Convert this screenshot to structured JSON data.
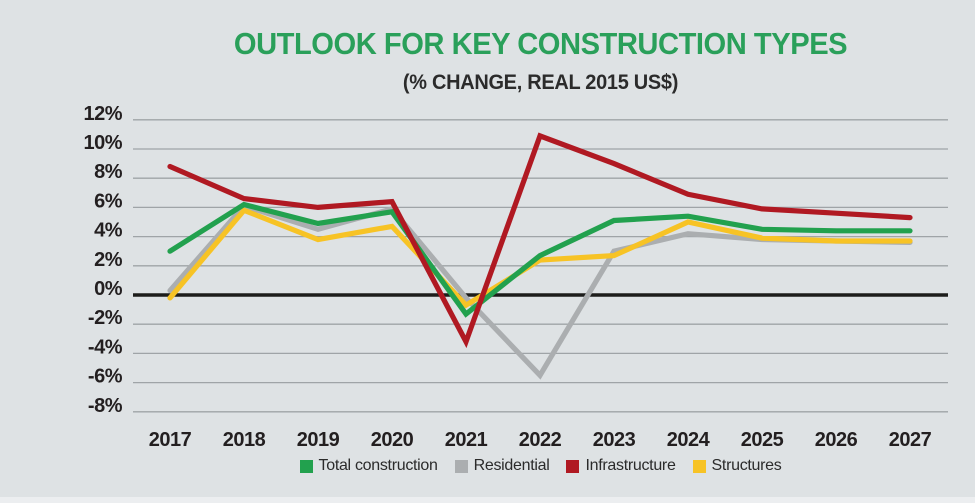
{
  "header": {
    "title": "OUTLOOK FOR KEY CONSTRUCTION TYPES",
    "subtitle": "(% CHANGE, REAL 2015 US$)",
    "title_color": "#2aa05a"
  },
  "chart_data": {
    "type": "line",
    "title": "OUTLOOK FOR KEY CONSTRUCTION TYPES",
    "subtitle": "(% CHANGE, REAL 2015 US$)",
    "categories": [
      "2017",
      "2018",
      "2019",
      "2020",
      "2021",
      "2022",
      "2023",
      "2024",
      "2025",
      "2026",
      "2027"
    ],
    "series": [
      {
        "name": "Total construction",
        "color": "#22a14e",
        "values": [
          3.0,
          6.2,
          4.9,
          5.7,
          -1.3,
          2.7,
          5.1,
          5.4,
          4.5,
          4.4,
          4.4
        ]
      },
      {
        "name": "Residential",
        "color": "#abaeb0",
        "values": [
          0.3,
          6.1,
          4.5,
          5.9,
          -0.2,
          -5.5,
          3.0,
          4.2,
          3.8,
          3.7,
          3.6
        ]
      },
      {
        "name": "Infrastructure",
        "color": "#b01922",
        "values": [
          8.8,
          6.6,
          6.0,
          6.4,
          -3.2,
          10.9,
          9.0,
          6.9,
          5.9,
          5.6,
          5.3
        ]
      },
      {
        "name": "Structures",
        "color": "#f7c325",
        "values": [
          -0.2,
          5.8,
          3.8,
          4.7,
          -0.7,
          2.4,
          2.7,
          5.0,
          3.9,
          3.7,
          3.7
        ]
      }
    ],
    "ylim": [
      -8,
      12
    ],
    "ytick_step": 2,
    "ytick_suffix": "%",
    "grid": true,
    "zero_line": true,
    "legend_position": "bottom",
    "draw_order": [
      "Residential",
      "Structures",
      "Total construction",
      "Infrastructure"
    ],
    "colors": {
      "background": "#dee2e4",
      "gridline": "#9fa4a7",
      "zero_line": "#1d1d1b",
      "axis_text": "#231f20"
    }
  }
}
